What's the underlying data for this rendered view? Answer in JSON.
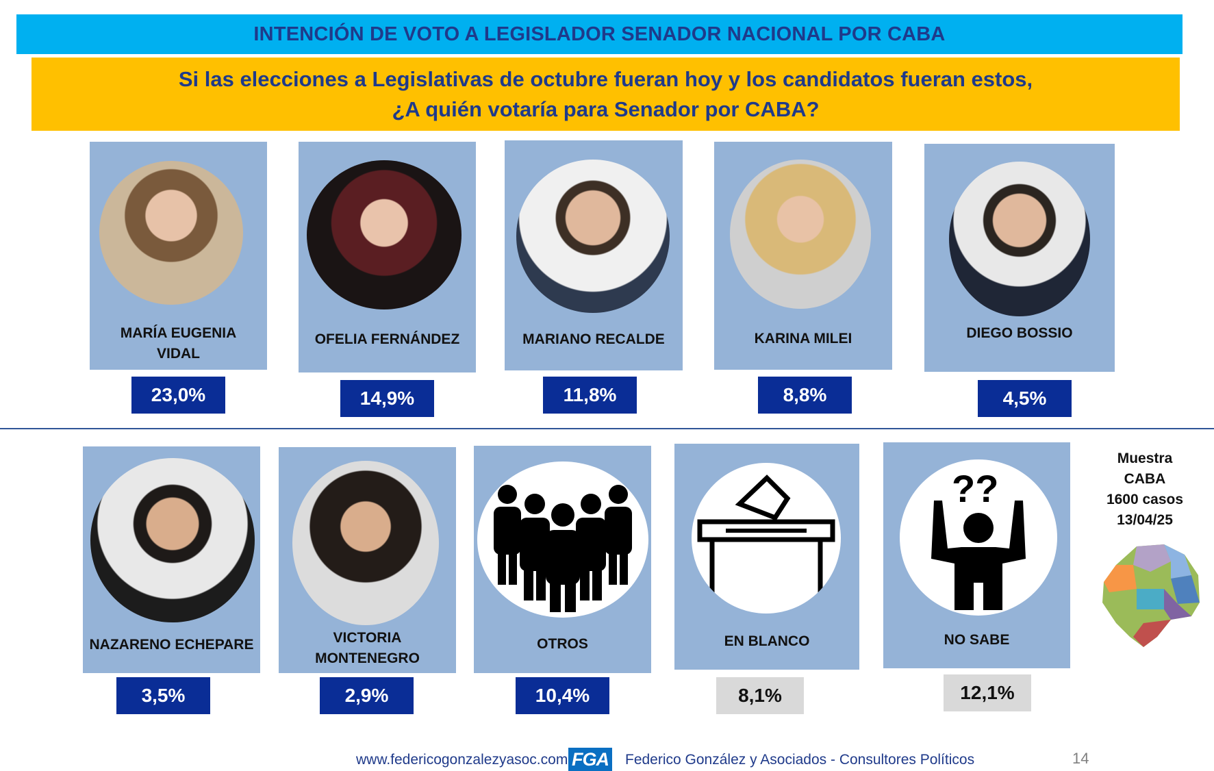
{
  "title": "INTENCIÓN DE VOTO A LEGISLADOR SENADOR NACIONAL POR CABA",
  "question": {
    "line1": "Si las elecciones a Legislativas de octubre fueran hoy y los candidatos fueran estos,",
    "line2": "¿A quién votaría para Senador por CABA?"
  },
  "row1": [
    {
      "name_line1": "MARÍA EUGENIA",
      "name_line2": "VIDAL",
      "pct": "23,0%",
      "icon": "person-photo-icon"
    },
    {
      "name_line1": "OFELIA FERNÁNDEZ",
      "name_line2": "",
      "pct": "14,9%",
      "icon": "person-photo-icon"
    },
    {
      "name_line1": "MARIANO RECALDE",
      "name_line2": "",
      "pct": "11,8%",
      "icon": "person-photo-icon"
    },
    {
      "name_line1": "KARINA MILEI",
      "name_line2": "",
      "pct": "8,8%",
      "icon": "person-photo-icon"
    },
    {
      "name_line1": "DIEGO BOSSIO",
      "name_line2": "",
      "pct": "4,5%",
      "icon": "person-photo-icon"
    }
  ],
  "row2": [
    {
      "name_line1": "NAZARENO ECHEPARE",
      "name_line2": "",
      "pct": "3,5%",
      "icon": "person-photo-icon"
    },
    {
      "name_line1": "VICTORIA",
      "name_line2": "MONTENEGRO",
      "pct": "2,9%",
      "icon": "person-photo-icon"
    },
    {
      "name_line1": "OTROS",
      "name_line2": "",
      "pct": "10,4%",
      "icon": "group-people-icon"
    },
    {
      "name_line1": "EN  BLANCO",
      "name_line2": "",
      "pct": "8,1%",
      "icon": "ballot-box-icon"
    },
    {
      "name_line1": "NO  SABE",
      "name_line2": "",
      "pct": "12,1%",
      "icon": "question-person-icon"
    }
  ],
  "sample": {
    "line1": "Muestra",
    "line2": "CABA",
    "line3": "1600  casos",
    "line4": "13/04/25"
  },
  "footer": {
    "url": "www.federicogonzalezyasoc.com",
    "logo": "FGA",
    "company": "Federico González y Asociados - Consultores Políticos",
    "page": "14"
  },
  "colors": {
    "title_bg": "#00b0f0",
    "question_bg": "#ffc000",
    "card_bg": "#95b3d7",
    "pct_blue": "#0a2d96",
    "pct_grey": "#d9d9d9",
    "text_navy": "#1f3a8a"
  }
}
